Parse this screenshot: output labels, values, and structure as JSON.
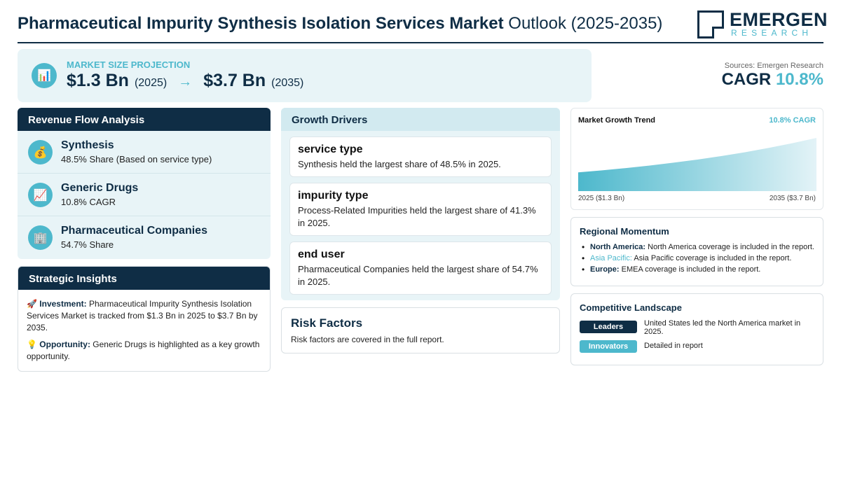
{
  "header": {
    "title_bold": "Pharmaceutical Impurity Synthesis Isolation Services Market",
    "title_rest": "Outlook (2025-2035)",
    "logo_name": "EMERGEN",
    "logo_sub": "RESEARCH"
  },
  "market_size": {
    "label": "MARKET SIZE PROJECTION",
    "start_value": "$1.3 Bn",
    "start_year": "(2025)",
    "arrow": "→",
    "end_value": "$3.7 Bn",
    "end_year": "(2035)",
    "icon": "bar-chart-icon"
  },
  "sources": "Sources: Emergen Research",
  "cagr": {
    "label": "CAGR",
    "value": "10.8%"
  },
  "revenue_flow": {
    "title": "Revenue Flow Analysis",
    "items": [
      {
        "icon": "money-bag-icon",
        "glyph": "💰",
        "title": "Synthesis",
        "sub": "48.5% Share (Based on service type)"
      },
      {
        "icon": "trend-chart-icon",
        "glyph": "📈",
        "title": "Generic Drugs",
        "sub": "10.8% CAGR"
      },
      {
        "icon": "building-icon",
        "glyph": "🏢",
        "title": "Pharmaceutical Companies",
        "sub": "54.7% Share"
      }
    ]
  },
  "strategic": {
    "title": "Strategic Insights",
    "investment_label": "Investment:",
    "investment_text": "Pharmaceutical Impurity Synthesis Isolation Services Market is tracked from $1.3 Bn in 2025 to $3.7 Bn by 2035.",
    "opportunity_label": "Opportunity:",
    "opportunity_text": "Generic Drugs is highlighted as a key growth opportunity."
  },
  "drivers": {
    "title": "Growth Drivers",
    "items": [
      {
        "title": "service type",
        "text": "Synthesis held the largest share of 48.5% in 2025."
      },
      {
        "title": "impurity type",
        "text": "Process-Related Impurities held the largest share of 41.3% in 2025."
      },
      {
        "title": "end user",
        "text": "Pharmaceutical Companies held the largest share of 54.7% in 2025."
      }
    ]
  },
  "risk": {
    "title": "Risk Factors",
    "text": "Risk factors are covered in the full report."
  },
  "trend": {
    "title": "Market Growth Trend",
    "cagr": "10.8% CAGR",
    "left_label": "2025 ($1.3 Bn)",
    "right_label": "2035 ($3.7 Bn)",
    "colors": {
      "fill_start": "#4db8cc",
      "fill_end": "#e3f3f7"
    }
  },
  "chart_data": {
    "type": "area",
    "x": [
      2025,
      2035
    ],
    "values": [
      1.3,
      3.7
    ],
    "title": "Market Growth Trend"
  },
  "regional": {
    "title": "Regional Momentum",
    "items": [
      {
        "name": "North America:",
        "text": "North America coverage is included in the report."
      },
      {
        "name": "Asia Pacific:",
        "text": "Asia Pacific coverage is included in the report."
      },
      {
        "name": "Europe:",
        "text": "EMEA coverage is included in the report."
      }
    ]
  },
  "competitive": {
    "title": "Competitive Landscape",
    "rows": [
      {
        "badge": "Leaders",
        "text": "United States led the North America market in 2025."
      },
      {
        "badge": "Innovators",
        "text": "Detailed in report"
      }
    ]
  },
  "colors": {
    "navy": "#0f2d45",
    "teal": "#4db8cc",
    "panel": "#e8f4f7"
  }
}
